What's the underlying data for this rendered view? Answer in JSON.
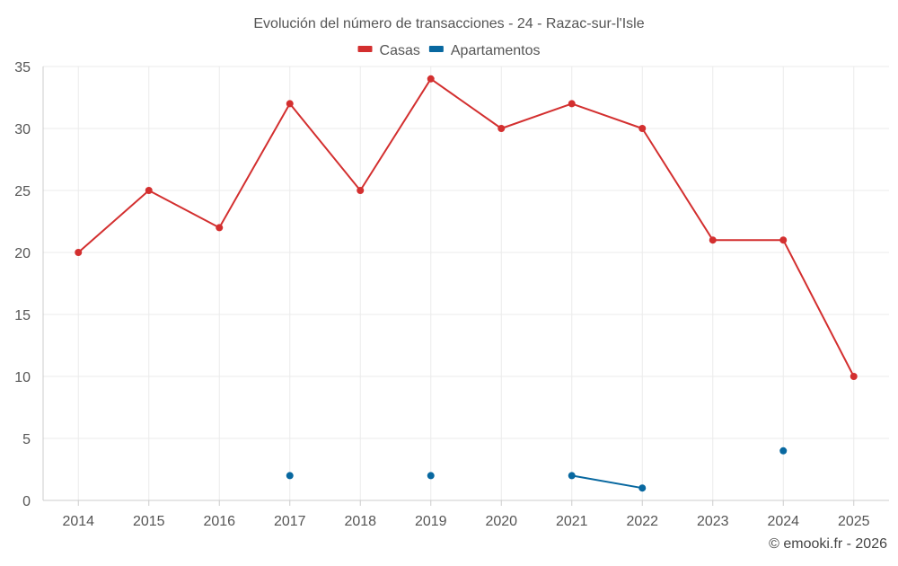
{
  "chart_data": {
    "type": "line",
    "title": "Evolución del número de transacciones - 24 - Razac-sur-l'Isle",
    "x": [
      "2014",
      "2015",
      "2016",
      "2017",
      "2018",
      "2019",
      "2020",
      "2021",
      "2022",
      "2023",
      "2024",
      "2025"
    ],
    "ylim": [
      0,
      35
    ],
    "yticks": [
      0,
      5,
      10,
      15,
      20,
      25,
      30,
      35
    ],
    "grid": true,
    "legend_position": "top-center",
    "series": [
      {
        "name": "Casas",
        "color": "#d32f2f",
        "values": [
          20,
          25,
          22,
          32,
          25,
          34,
          30,
          32,
          30,
          21,
          21,
          10
        ]
      },
      {
        "name": "Apartamentos",
        "color": "#0868a0",
        "values": [
          null,
          null,
          null,
          2,
          null,
          2,
          null,
          2,
          1,
          null,
          4,
          null
        ]
      }
    ]
  },
  "footer": {
    "credit": "© emooki.fr - 2026"
  }
}
